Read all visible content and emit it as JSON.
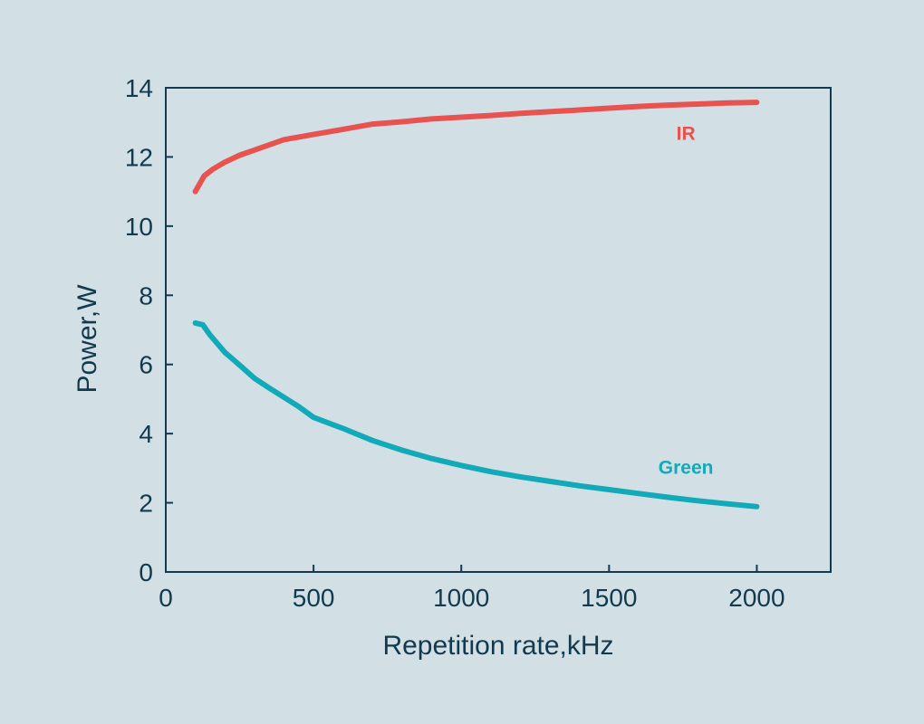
{
  "chart_data": {
    "type": "line",
    "title": "",
    "xlabel": "Repetition rate,kHz",
    "ylabel": "Power,W",
    "xlim": [
      0,
      2250
    ],
    "ylim": [
      0,
      14
    ],
    "xticks": [
      0,
      500,
      1000,
      1500,
      2000
    ],
    "yticks": [
      0,
      2,
      4,
      6,
      8,
      10,
      12,
      14
    ],
    "grid": false,
    "series": [
      {
        "name": "IR",
        "color": "#e8524f",
        "x": [
          100,
          130,
          160,
          200,
          250,
          300,
          350,
          400,
          500,
          600,
          700,
          800,
          900,
          1000,
          1100,
          1200,
          1300,
          1400,
          1500,
          1600,
          1700,
          1800,
          1900,
          2000
        ],
        "y": [
          11.0,
          11.45,
          11.65,
          11.85,
          12.05,
          12.2,
          12.35,
          12.5,
          12.65,
          12.8,
          12.95,
          13.02,
          13.1,
          13.15,
          13.2,
          13.26,
          13.31,
          13.36,
          13.41,
          13.46,
          13.5,
          13.53,
          13.56,
          13.58
        ]
      },
      {
        "name": "Green",
        "color": "#12a9b9",
        "x": [
          100,
          125,
          150,
          175,
          200,
          250,
          300,
          350,
          400,
          450,
          500,
          600,
          700,
          800,
          900,
          1000,
          1100,
          1200,
          1300,
          1400,
          1500,
          1600,
          1700,
          1800,
          1900,
          2000
        ],
        "y": [
          7.2,
          7.15,
          6.85,
          6.6,
          6.35,
          5.98,
          5.6,
          5.32,
          5.05,
          4.78,
          4.47,
          4.15,
          3.8,
          3.52,
          3.28,
          3.08,
          2.9,
          2.75,
          2.62,
          2.49,
          2.38,
          2.27,
          2.16,
          2.06,
          1.97,
          1.89
        ]
      }
    ],
    "annotations": [
      {
        "text": "IR",
        "series": "IR",
        "x": 1760,
        "y": 12.7
      },
      {
        "text": "Green",
        "series": "Green",
        "x": 1760,
        "y": 3.05
      }
    ]
  }
}
